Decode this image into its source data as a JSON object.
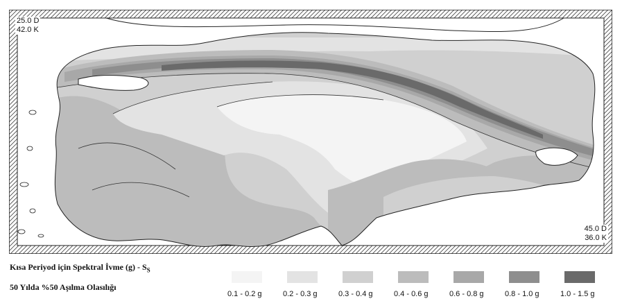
{
  "map": {
    "corner_nw": {
      "lon": "25.0 D",
      "lat": "42.0 K"
    },
    "corner_se": {
      "lon": "45.0 D",
      "lat": "36.0 K"
    }
  },
  "legend": {
    "title_main": "Kısa Periyod için Spektral İvme (g) - S",
    "title_sub": "S",
    "subtitle": "50 Yılda %50 Aşılma Olasılığı",
    "classes": [
      {
        "label": "0.1 - 0.2 g",
        "color": "#f4f4f4"
      },
      {
        "label": "0.2 - 0.3 g",
        "color": "#e3e3e3"
      },
      {
        "label": "0.3 - 0.4 g",
        "color": "#d0d0d0"
      },
      {
        "label": "0.4 - 0.6 g",
        "color": "#bcbcbc"
      },
      {
        "label": "0.6 - 0.8 g",
        "color": "#a8a8a8"
      },
      {
        "label": "0.8 - 1.0 g",
        "color": "#8e8e8e"
      },
      {
        "label": "1.0 - 1.5 g",
        "color": "#6a6a6a"
      }
    ]
  }
}
